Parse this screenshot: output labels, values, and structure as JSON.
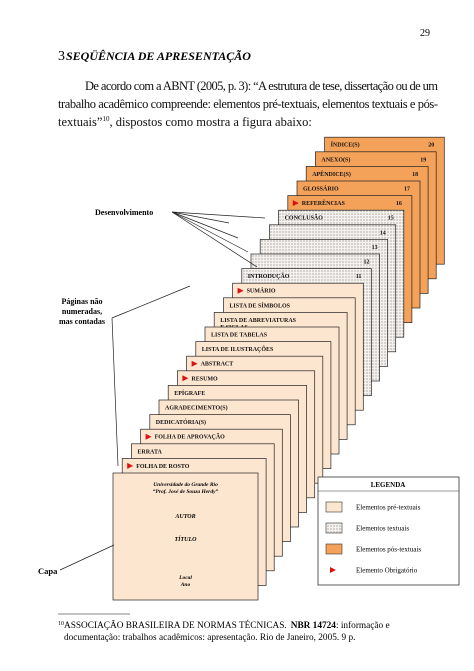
{
  "page_number": "29",
  "heading": {
    "number": "3",
    "title": "SEQÜÊNCIA DE APRESENTAÇÃO"
  },
  "paragraph": {
    "line_1": "De acordo com a ABNT (2005, p. 3): “A estrutura de tese, dissertação ou de um",
    "line_2": "trabalho acadêmico compreende: elementos pré-textuais, elementos textuais e pós-",
    "line_3": "textuais”",
    "footnote_ref": "10",
    "line_3_end": ", dispostos como mostra a figura abaixo:"
  },
  "diagram": {
    "cover": {
      "institution": "Universidade do Grande Rio",
      "subtitle": "“Prof. José de Souza Herdy”",
      "author": "AUTOR",
      "title": "TÍTULO",
      "place": "Local",
      "year": "Ano"
    },
    "pages": [
      {
        "label": "FOLHA DE ROSTO",
        "kind": "pre",
        "required": true
      },
      {
        "label": "ERRATA",
        "kind": "pre",
        "required": false
      },
      {
        "label": "FOLHA DE APROVAÇÃO",
        "kind": "pre",
        "required": true
      },
      {
        "label": "DEDICATÓRIA(S)",
        "kind": "pre",
        "required": false
      },
      {
        "label": "AGRADECIMENTO(S)",
        "kind": "pre",
        "required": false
      },
      {
        "label": "EPÍGRAFE",
        "kind": "pre",
        "required": false
      },
      {
        "label": "RESUMO",
        "kind": "pre",
        "required": true
      },
      {
        "label": "ABSTRACT",
        "kind": "pre",
        "required": true
      },
      {
        "label": "LISTA DE ILUSTRAÇÕES",
        "kind": "pre",
        "required": false
      },
      {
        "label": "LISTA DE TABELAS",
        "kind": "pre",
        "required": false
      },
      {
        "label": "LISTA DE ABREVIATURAS",
        "label_2": "E SIGLAS",
        "kind": "pre",
        "required": false
      },
      {
        "label": "LISTA DE SÍMBOLOS",
        "kind": "pre",
        "required": false
      },
      {
        "label": "SUMÁRIO",
        "kind": "pre",
        "required": true
      },
      {
        "label": "INTRODUÇÃO",
        "number": "11",
        "kind": "text",
        "required": false
      },
      {
        "number": "12",
        "kind": "text",
        "required": false
      },
      {
        "number": "13",
        "kind": "text",
        "required": false
      },
      {
        "number": "14",
        "kind": "text",
        "required": false
      },
      {
        "label": "CONCLUSÃO",
        "number": "15",
        "kind": "text",
        "required": false
      },
      {
        "label": "REFERÊNCIAS",
        "number": "16",
        "kind": "post",
        "required": true
      },
      {
        "label": "GLOSSÁRIO",
        "number": "17",
        "kind": "post",
        "required": false
      },
      {
        "label": "APÊNDICE(S)",
        "number": "18",
        "kind": "post",
        "required": false
      },
      {
        "label": "ANEXO(S)",
        "number": "19",
        "kind": "post",
        "required": false
      },
      {
        "label": "ÍNDICE(S)",
        "number": "20",
        "kind": "post",
        "required": false
      }
    ],
    "callouts": {
      "development": "Desenvolvimento",
      "unnumbered": [
        "Páginas não",
        "numeradas,",
        "mas contadas"
      ],
      "cover": "Capa"
    },
    "legend": {
      "title": "LEGENDA",
      "items": [
        {
          "label": "Elementos pré-textuais",
          "kind": "pre"
        },
        {
          "label": "Elementos textuais",
          "kind": "text"
        },
        {
          "label": "Elementos pós-textuais",
          "kind": "post"
        },
        {
          "label": "Elemento Obrigatório",
          "kind": "required"
        }
      ]
    }
  },
  "footnote": {
    "number": "10",
    "line_1_start": "ASSOCIAÇÃO BRASILEIRA DE NORMAS TÉCNICAS.",
    "line_1_bold": "NBR 14724",
    "line_1_end": ": informação e",
    "line_2": "documentação: trabalhos acadêmicos: apresentação. Rio de Janeiro, 2005. 9 p."
  }
}
